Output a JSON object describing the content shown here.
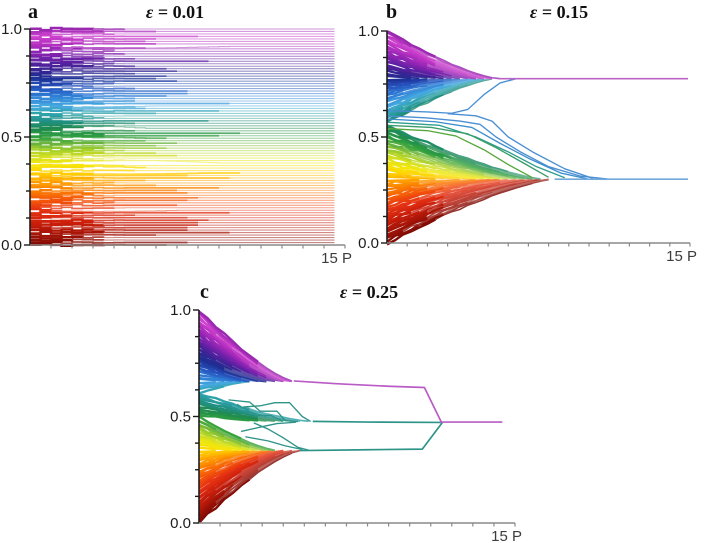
{
  "colors": {
    "background": "#ffffff",
    "y_axis": "#1c1c1c",
    "x_axis": "#8a8a8a",
    "tick_label": "#1c1c1c",
    "x_label": "#3c3c3c",
    "colormap_stops": [
      [
        0.0,
        "#800b05"
      ],
      [
        0.05,
        "#a31407"
      ],
      [
        0.1,
        "#c81d0b"
      ],
      [
        0.16,
        "#e53212"
      ],
      [
        0.21,
        "#f4570a"
      ],
      [
        0.26,
        "#fb8200"
      ],
      [
        0.3,
        "#ffa800"
      ],
      [
        0.34,
        "#ffd300"
      ],
      [
        0.375,
        "#f3e70b"
      ],
      [
        0.41,
        "#d5e021"
      ],
      [
        0.44,
        "#a3cf2b"
      ],
      [
        0.47,
        "#6db53d"
      ],
      [
        0.5,
        "#30a03f"
      ],
      [
        0.54,
        "#1f8a50"
      ],
      [
        0.575,
        "#219084"
      ],
      [
        0.61,
        "#2fa3ad"
      ],
      [
        0.645,
        "#47a9e0"
      ],
      [
        0.69,
        "#2f7ed6"
      ],
      [
        0.735,
        "#2551bc"
      ],
      [
        0.775,
        "#1d2e92"
      ],
      [
        0.815,
        "#3b2394"
      ],
      [
        0.855,
        "#6120a4"
      ],
      [
        0.895,
        "#8d23b2"
      ],
      [
        0.935,
        "#b52fc0"
      ],
      [
        0.97,
        "#cf42cf"
      ],
      [
        1.0,
        "#9a28b0"
      ]
    ]
  },
  "chart_data": [
    {
      "type": "line",
      "panel_label": "a",
      "title": "ε = 0.01",
      "title_symbol": "ε",
      "title_rest": " = 0.01",
      "epsilon": 0.01,
      "behavior": "no_convergence",
      "n_agents": 88,
      "x_axis": {
        "label": "15 P",
        "max": 15,
        "tick_count": 15
      },
      "y_axis": {
        "range": [
          0,
          1
        ],
        "tick_values": [
          0,
          0.5,
          1
        ],
        "tick_labels": [
          "0.0",
          "0.5",
          "1.0"
        ],
        "minor_step": 0.125
      },
      "initial_opinions": "uniform 0 to 1",
      "description": "opinions stay at initial values with small early fluctuations; no consensus"
    },
    {
      "type": "line",
      "panel_label": "b",
      "title": "ε = 0.15",
      "title_symbol": "ε",
      "title_rest": " = 0.15",
      "epsilon": 0.15,
      "behavior": "clusters",
      "n_agents": 100,
      "x_axis": {
        "label": "15 P",
        "max": 15,
        "tick_count": 15
      },
      "y_axis": {
        "range": [
          0,
          1
        ],
        "tick_values": [
          0,
          0.5,
          1
        ],
        "tick_labels": [
          "0.0",
          "0.5",
          "1.0"
        ],
        "minor_step": 0.125
      },
      "initial_opinions": "uniform 0 to 1",
      "clusters": [
        {
          "center": 0.775,
          "v_min": 0.565,
          "v_max": 1.0,
          "t_close": 5.5
        },
        {
          "center": 0.301,
          "v_min": 0.0,
          "v_max": 0.565,
          "t_close": 8.3
        }
      ],
      "stragglers": [
        {
          "color": "#4a8fd4",
          "points": [
            [
              0,
              0.625
            ],
            [
              2,
              0.618
            ],
            [
              3.2,
              0.612
            ],
            [
              4.0,
              0.63
            ],
            [
              4.8,
              0.7
            ],
            [
              5.6,
              0.755
            ],
            [
              6.4,
              0.775
            ]
          ]
        },
        {
          "color": "#4a8fd4",
          "points": [
            [
              0,
              0.6
            ],
            [
              2,
              0.59
            ],
            [
              3.6,
              0.575
            ],
            [
              4.6,
              0.56
            ],
            [
              5.4,
              0.5
            ],
            [
              6.6,
              0.43
            ],
            [
              8.0,
              0.36
            ],
            [
              9.6,
              0.315
            ],
            [
              10.9,
              0.302
            ]
          ]
        },
        {
          "color": "#3f8ecc",
          "points": [
            [
              0,
              0.585
            ],
            [
              2.4,
              0.572
            ],
            [
              4.2,
              0.545
            ],
            [
              5.6,
              0.47
            ],
            [
              7.0,
              0.4
            ],
            [
              8.6,
              0.33
            ],
            [
              9.9,
              0.303
            ]
          ]
        },
        {
          "color": "#2e9e8e",
          "points": [
            [
              0,
              0.57
            ],
            [
              2.6,
              0.555
            ],
            [
              4.4,
              0.5
            ],
            [
              6.0,
              0.43
            ],
            [
              7.4,
              0.36
            ],
            [
              8.8,
              0.308
            ]
          ]
        },
        {
          "color": "#3a9e6a",
          "points": [
            [
              0,
              0.555
            ],
            [
              2.2,
              0.545
            ],
            [
              4.0,
              0.515
            ],
            [
              5.4,
              0.45
            ],
            [
              6.8,
              0.375
            ],
            [
              8.0,
              0.31
            ]
          ]
        },
        {
          "color": "#57a83c",
          "points": [
            [
              0,
              0.54
            ],
            [
              2.0,
              0.53
            ],
            [
              3.4,
              0.505
            ],
            [
              4.8,
              0.44
            ],
            [
              6.0,
              0.37
            ],
            [
              7.2,
              0.308
            ]
          ]
        },
        {
          "color": "#4a8fd4",
          "points": [
            [
              3.0,
              0.61
            ],
            [
              4.4,
              0.6
            ],
            [
              5.2,
              0.575
            ],
            [
              6.0,
              0.5
            ],
            [
              7.2,
              0.43
            ],
            [
              8.8,
              0.35
            ],
            [
              10.2,
              0.305
            ]
          ]
        }
      ],
      "final_paths": [
        {
          "color": "#bc63c6",
          "points": [
            [
              5.5,
              0.775
            ],
            [
              14.9,
              0.775
            ]
          ]
        },
        {
          "color": "#72a9dc",
          "points": [
            [
              8.3,
              0.301
            ],
            [
              14.9,
              0.301
            ]
          ]
        }
      ],
      "description": "opinions merge into two clusters near 0.78 and 0.30"
    },
    {
      "type": "line",
      "panel_label": "c",
      "title": "ε = 0.25",
      "title_symbol": "ε",
      "title_rest": " = 0.25",
      "epsilon": 0.25,
      "behavior": "clusters",
      "n_agents": 100,
      "x_axis": {
        "label": "15 P",
        "max": 15,
        "tick_count": 15
      },
      "y_axis": {
        "range": [
          0,
          1
        ],
        "tick_values": [
          0,
          0.5,
          1
        ],
        "tick_labels": [
          "0.0",
          "0.5",
          "1.0"
        ],
        "minor_step": 0.125
      },
      "initial_opinions": "uniform 0 to 1",
      "clusters": [
        {
          "center": 0.665,
          "v_min": 0.615,
          "v_max": 1.0,
          "t_close": 4.5
        },
        {
          "center": 0.477,
          "v_min": 0.5,
          "v_max": 0.615,
          "t_close": 5.4
        },
        {
          "center": 0.34,
          "v_min": 0.0,
          "v_max": 0.5,
          "t_close": 4.8
        }
      ],
      "stragglers": [
        {
          "color": "#2f9488",
          "points": [
            [
              1.4,
              0.578
            ],
            [
              2.4,
              0.568
            ],
            [
              2.9,
              0.525
            ],
            [
              3.7,
              0.525
            ],
            [
              4.1,
              0.48
            ],
            [
              4.7,
              0.476
            ]
          ]
        },
        {
          "color": "#2f9488",
          "points": [
            [
              1.8,
              0.558
            ],
            [
              2.7,
              0.505
            ],
            [
              3.4,
              0.505
            ],
            [
              4.0,
              0.478
            ]
          ]
        },
        {
          "color": "#2f9488",
          "points": [
            [
              2.1,
              0.545
            ],
            [
              2.9,
              0.55
            ],
            [
              3.6,
              0.565
            ],
            [
              4.3,
              0.565
            ],
            [
              4.9,
              0.5
            ],
            [
              5.3,
              0.477
            ]
          ]
        },
        {
          "color": "#2f9488",
          "points": [
            [
              2.0,
              0.43
            ],
            [
              3.0,
              0.452
            ],
            [
              3.7,
              0.467
            ],
            [
              4.6,
              0.473
            ]
          ]
        },
        {
          "color": "#2f9488",
          "points": [
            [
              2.2,
              0.405
            ],
            [
              3.3,
              0.385
            ],
            [
              4.1,
              0.362
            ],
            [
              4.9,
              0.345
            ]
          ]
        },
        {
          "color": "#2f9488",
          "points": [
            [
              2.6,
              0.47
            ],
            [
              3.3,
              0.44
            ],
            [
              4.0,
              0.4
            ],
            [
              4.7,
              0.355
            ],
            [
              5.2,
              0.342
            ]
          ]
        }
      ],
      "final_paths": [
        {
          "color": "#2f9488",
          "points": [
            [
              5.4,
              0.477
            ],
            [
              8.0,
              0.474
            ],
            [
              11.5,
              0.472
            ]
          ]
        },
        {
          "color": "#2f9488",
          "points": [
            [
              4.8,
              0.34
            ],
            [
              8.0,
              0.344
            ],
            [
              10.6,
              0.347
            ],
            [
              11.4,
              0.452
            ],
            [
              11.55,
              0.472
            ]
          ]
        },
        {
          "color": "#ba5cc6",
          "points": [
            [
              4.5,
              0.667
            ],
            [
              6.5,
              0.654
            ],
            [
              9.0,
              0.642
            ],
            [
              10.7,
              0.636
            ],
            [
              11.5,
              0.474
            ],
            [
              14.4,
              0.474
            ]
          ]
        }
      ],
      "description": "opinions merge into clusters near 0.665, 0.477 and 0.34 which finally unite at about 0.47"
    }
  ]
}
